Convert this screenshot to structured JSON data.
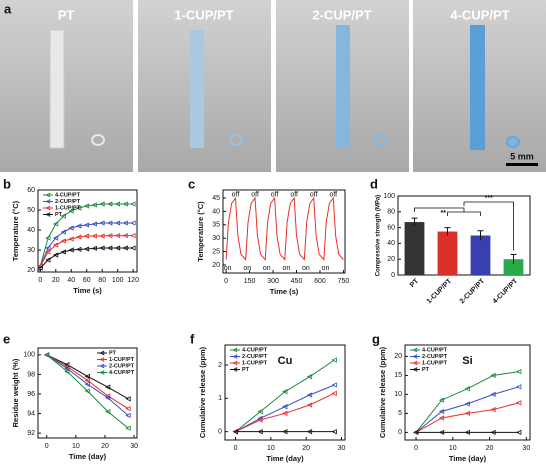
{
  "photos": {
    "panel": "a",
    "labels": [
      "PT",
      "1-CUP/PT",
      "2-CUP/PT",
      "4-CUP/PT"
    ],
    "scale_bar": "5 mm"
  },
  "chart_data": [
    {
      "type": "line",
      "panel": "b",
      "x_label": "Time (s)",
      "y_label": "Temperature (°C)",
      "x": [
        0,
        10,
        20,
        30,
        40,
        50,
        60,
        70,
        80,
        90,
        100,
        110,
        120
      ],
      "xlim": [
        -3,
        125
      ],
      "xticks": [
        0,
        20,
        40,
        60,
        80,
        100,
        120
      ],
      "ylim": [
        19,
        60
      ],
      "yticks": [
        20,
        30,
        40,
        50,
        60
      ],
      "legend": "upper left",
      "markers": true,
      "series": [
        {
          "name": "4-CUP/PT",
          "color": "#1b8a3c",
          "values": [
            22,
            36,
            43,
            47,
            49.5,
            51,
            52,
            52.5,
            53,
            53,
            53,
            53,
            53
          ]
        },
        {
          "name": "2-CUP/PT",
          "color": "#3a4fc4",
          "values": [
            22,
            31,
            36,
            39,
            41,
            42,
            42.5,
            43,
            43.5,
            43.5,
            43.5,
            43.5,
            43.5
          ]
        },
        {
          "name": "1-CUP/PT",
          "color": "#e8302a",
          "values": [
            22,
            29,
            32.5,
            34.5,
            35.5,
            36.5,
            37,
            37,
            37,
            37.2,
            37.2,
            37.2,
            37.2
          ]
        },
        {
          "name": "PT",
          "color": "#111111",
          "values": [
            21,
            25,
            27.5,
            29,
            30,
            30.3,
            30.5,
            30.8,
            31,
            31,
            31,
            31,
            31
          ]
        }
      ]
    },
    {
      "type": "line",
      "panel": "c",
      "x_label": "Time (s)",
      "y_label": "Temperature (°C)",
      "x": [
        0,
        15,
        35,
        60,
        75,
        95,
        125,
        140,
        160,
        185,
        200,
        220,
        250,
        265,
        285,
        310,
        325,
        345,
        375,
        390,
        410,
        435,
        450,
        470,
        500,
        515,
        535,
        560,
        575,
        595,
        625,
        640,
        660,
        685,
        700,
        720,
        750
      ],
      "xlim": [
        -20,
        760
      ],
      "xticks": [
        0,
        150,
        300,
        450,
        600,
        750
      ],
      "ylim": [
        17,
        48
      ],
      "yticks": [
        20,
        25,
        30,
        35,
        40,
        45
      ],
      "markers": false,
      "series": [
        {
          "name": "PT",
          "color": "#e8302a",
          "values": [
            22,
            36,
            43,
            45,
            31,
            24,
            22,
            36,
            43,
            45,
            31,
            24,
            22,
            36,
            43,
            45,
            31,
            24,
            22,
            36,
            43,
            45,
            31,
            24,
            22,
            36,
            43,
            45,
            31,
            24,
            22,
            36,
            43,
            45,
            31,
            24,
            22
          ]
        }
      ],
      "annotations": [
        {
          "text": "off",
          "x": 60,
          "y": 46.3
        },
        {
          "text": "off",
          "x": 185,
          "y": 46.3
        },
        {
          "text": "off",
          "x": 310,
          "y": 46.3
        },
        {
          "text": "off",
          "x": 435,
          "y": 46.3
        },
        {
          "text": "off",
          "x": 560,
          "y": 46.3
        },
        {
          "text": "off",
          "x": 685,
          "y": 46.3
        },
        {
          "text": "on",
          "x": 10,
          "y": 18.8
        },
        {
          "text": "on",
          "x": 135,
          "y": 18.8
        },
        {
          "text": "on",
          "x": 260,
          "y": 18.8
        },
        {
          "text": "on",
          "x": 385,
          "y": 18.8
        },
        {
          "text": "on",
          "x": 510,
          "y": 18.8
        },
        {
          "text": "on",
          "x": 635,
          "y": 18.8
        }
      ]
    },
    {
      "type": "bar",
      "panel": "d",
      "y_label": "Compressive strength (MPa)",
      "categories": [
        "PT",
        "1-CUP/PT",
        "2-CUP/PT",
        "4-CUP/PT"
      ],
      "values": [
        67,
        55,
        50,
        20
      ],
      "errors": [
        5,
        5,
        6,
        6
      ],
      "colors": [
        "#333333",
        "#d9302a",
        "#3a3fb0",
        "#2aa84a"
      ],
      "ylim": [
        0,
        100
      ],
      "yticks": [
        0,
        20,
        40,
        60,
        80,
        100
      ],
      "annotations": [
        {
          "text": "**"
        },
        {
          "text": "***"
        }
      ]
    },
    {
      "type": "line",
      "panel": "e",
      "x_label": "Time (day)",
      "y_label": "Residue weight (%)",
      "x": [
        0,
        7,
        14,
        21,
        28
      ],
      "xlim": [
        -3,
        31
      ],
      "xticks": [
        0,
        10,
        20,
        30
      ],
      "ylim": [
        91.5,
        100.7
      ],
      "yticks": [
        92,
        94,
        96,
        98,
        100
      ],
      "legend": "upper right",
      "markers": true,
      "series": [
        {
          "name": "PT",
          "color": "#111111",
          "values": [
            100,
            99,
            97.8,
            96.7,
            95.5
          ]
        },
        {
          "name": "1-CUP/PT",
          "color": "#e8302a",
          "values": [
            100,
            98.8,
            97.4,
            95.8,
            94.5
          ]
        },
        {
          "name": "2-CUP/PT",
          "color": "#3a4fc4",
          "values": [
            100,
            98.6,
            97,
            95.6,
            93.8
          ]
        },
        {
          "name": "4-CUP/PT",
          "color": "#1b8a3c",
          "values": [
            100,
            98.3,
            96.3,
            94.2,
            92.5
          ]
        }
      ]
    },
    {
      "type": "line",
      "panel": "f",
      "title": "Cu",
      "x_label": "Time (day)",
      "y_label": "Cumulative release (ppm)",
      "x": [
        0,
        7,
        14,
        21,
        28
      ],
      "xlim": [
        -3,
        31
      ],
      "xticks": [
        0,
        10,
        20,
        30
      ],
      "ylim": [
        -0.25,
        2.6
      ],
      "yticks": [
        0,
        1,
        2
      ],
      "legend": "upper left",
      "markers": true,
      "series": [
        {
          "name": "4-CUP/PT",
          "color": "#1b8a3c",
          "values": [
            0,
            0.6,
            1.2,
            1.65,
            2.15
          ]
        },
        {
          "name": "2-CUP/PT",
          "color": "#3a4fc4",
          "values": [
            0,
            0.4,
            0.75,
            1.1,
            1.4
          ]
        },
        {
          "name": "1-CUP/PT",
          "color": "#e8302a",
          "values": [
            0,
            0.35,
            0.55,
            0.8,
            1.15
          ]
        },
        {
          "name": "PT",
          "color": "#111111",
          "values": [
            0,
            0,
            0,
            0,
            0
          ]
        }
      ]
    },
    {
      "type": "line",
      "panel": "g",
      "title": "Si",
      "x_label": "Time (day)",
      "y_label": "Cumulative release (ppm)",
      "x": [
        0,
        7,
        14,
        21,
        28
      ],
      "xlim": [
        -3,
        31
      ],
      "xticks": [
        0,
        10,
        20,
        30
      ],
      "ylim": [
        -2,
        23
      ],
      "yticks": [
        0,
        5,
        10,
        15,
        20
      ],
      "legend": "upper left",
      "markers": true,
      "series": [
        {
          "name": "4-CUP/PT",
          "color": "#1b8a3c",
          "values": [
            0,
            8.5,
            11.5,
            15,
            16
          ]
        },
        {
          "name": "2-CUP/PT",
          "color": "#3a4fc4",
          "values": [
            0,
            5.5,
            7.5,
            10,
            12
          ]
        },
        {
          "name": "1-CUP/PT",
          "color": "#e8302a",
          "values": [
            0,
            3.8,
            5,
            6,
            7.8
          ]
        },
        {
          "name": "PT",
          "color": "#111111",
          "values": [
            0,
            0,
            0,
            0,
            0
          ]
        }
      ]
    }
  ]
}
